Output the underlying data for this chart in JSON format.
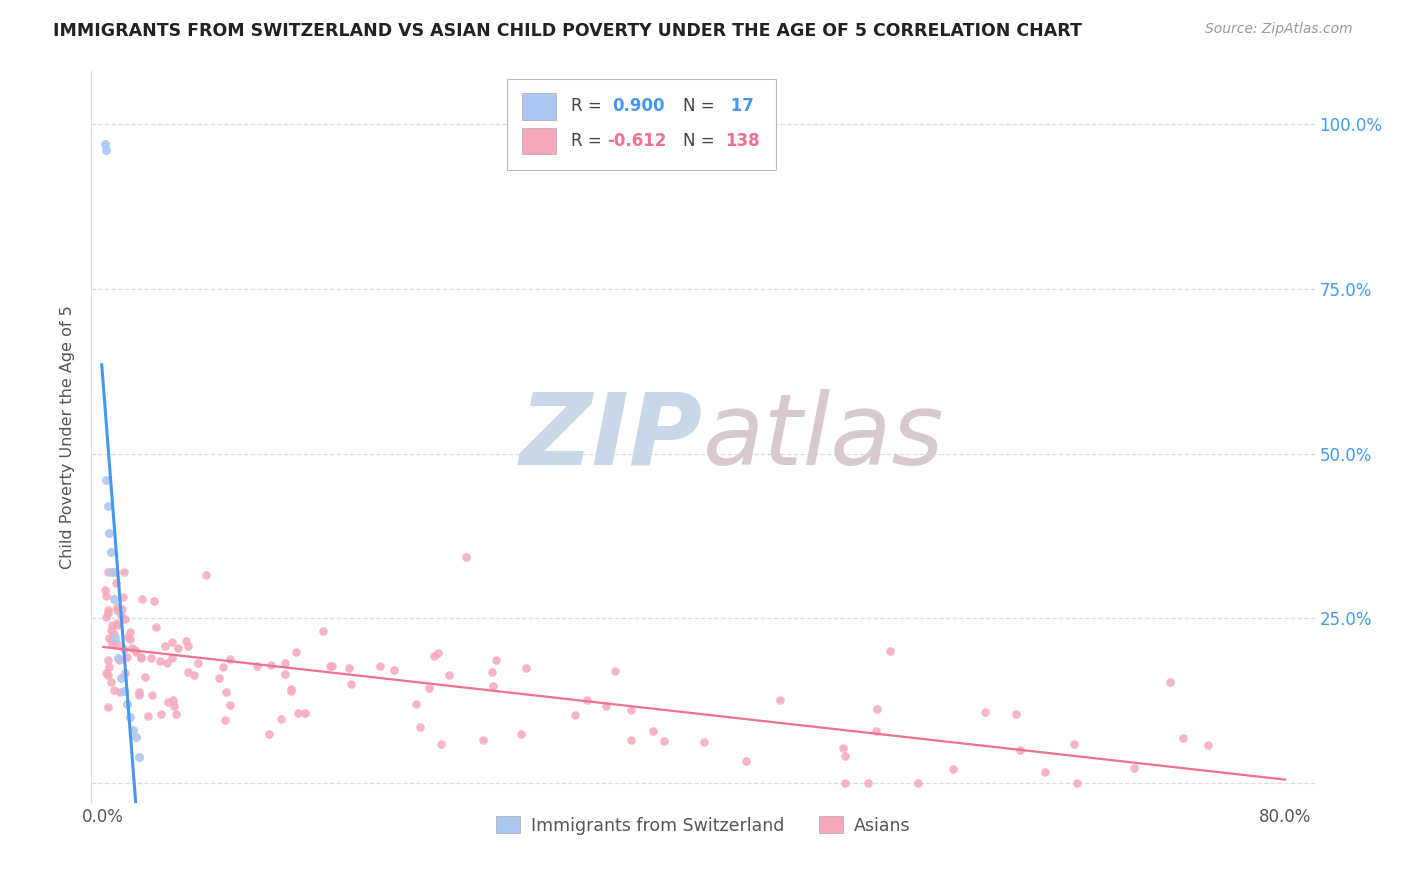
{
  "title": "IMMIGRANTS FROM SWITZERLAND VS ASIAN CHILD POVERTY UNDER THE AGE OF 5 CORRELATION CHART",
  "source": "Source: ZipAtlas.com",
  "ylabel": "Child Poverty Under the Age of 5",
  "ytick_labels": [
    "",
    "25.0%",
    "50.0%",
    "75.0%",
    "100.0%"
  ],
  "ytick_values": [
    0.0,
    0.25,
    0.5,
    0.75,
    1.0
  ],
  "xtick_labels": [
    "0.0%",
    "80.0%"
  ],
  "xtick_values": [
    0.0,
    0.8
  ],
  "xlim": [
    -0.008,
    0.82
  ],
  "ylim": [
    -0.03,
    1.08
  ],
  "legend_blue_label": "Immigrants from Switzerland",
  "legend_pink_label": "Asians",
  "R_blue": 0.9,
  "N_blue": 17,
  "R_pink": -0.612,
  "N_pink": 138,
  "blue_color": "#aac8f0",
  "pink_color": "#f5a8ba",
  "blue_line_color": "#4499ee",
  "pink_line_color": "#f07090",
  "watermark_zip_color": "#c8d8e8",
  "watermark_atlas_color": "#d8c8d0",
  "background_color": "#ffffff",
  "grid_color": "#dddddd",
  "title_color": "#222222",
  "label_color": "#555555",
  "tick_color": "#4499ee",
  "source_color": "#999999"
}
